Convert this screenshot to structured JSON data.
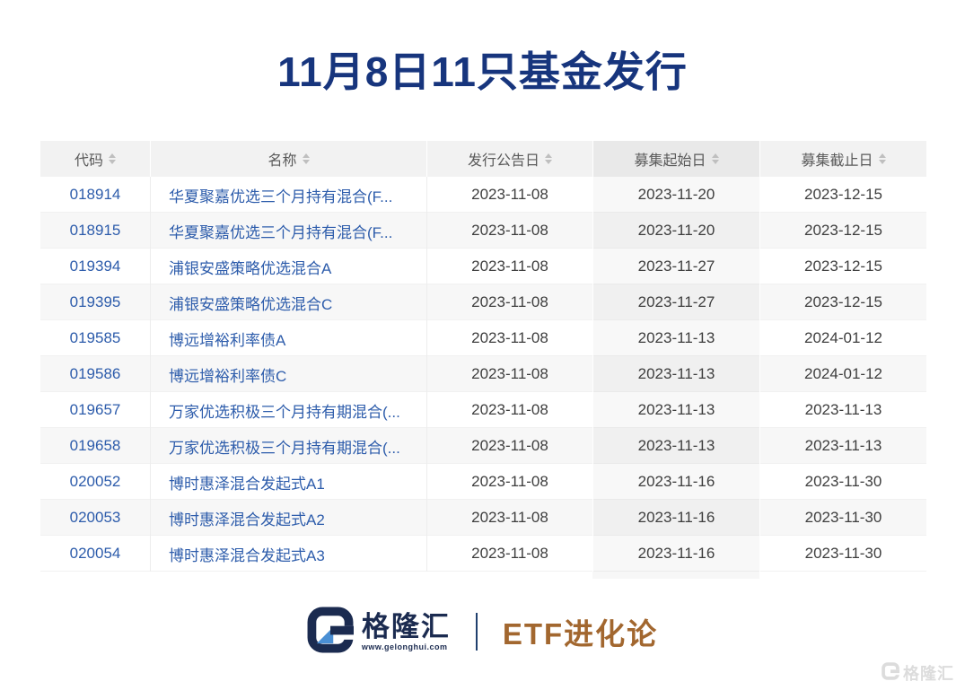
{
  "title": "11月8日11只基金发行",
  "table": {
    "columns": [
      {
        "key": "code",
        "label": "代码",
        "highlight": false
      },
      {
        "key": "name",
        "label": "名称",
        "highlight": false
      },
      {
        "key": "announce-date",
        "label": "发行公告日",
        "highlight": false
      },
      {
        "key": "start-date",
        "label": "募集起始日",
        "highlight": true
      },
      {
        "key": "end-date",
        "label": "募集截止日",
        "highlight": false
      }
    ],
    "rows": [
      {
        "code": "018914",
        "name": "华夏聚嘉优选三个月持有混合(F...",
        "announce_date": "2023-11-08",
        "start_date": "2023-11-20",
        "end_date": "2023-12-15"
      },
      {
        "code": "018915",
        "name": "华夏聚嘉优选三个月持有混合(F...",
        "announce_date": "2023-11-08",
        "start_date": "2023-11-20",
        "end_date": "2023-12-15"
      },
      {
        "code": "019394",
        "name": "浦银安盛策略优选混合A",
        "announce_date": "2023-11-08",
        "start_date": "2023-11-27",
        "end_date": "2023-12-15"
      },
      {
        "code": "019395",
        "name": "浦银安盛策略优选混合C",
        "announce_date": "2023-11-08",
        "start_date": "2023-11-27",
        "end_date": "2023-12-15"
      },
      {
        "code": "019585",
        "name": "博远增裕利率债A",
        "announce_date": "2023-11-08",
        "start_date": "2023-11-13",
        "end_date": "2024-01-12"
      },
      {
        "code": "019586",
        "name": "博远增裕利率债C",
        "announce_date": "2023-11-08",
        "start_date": "2023-11-13",
        "end_date": "2024-01-12"
      },
      {
        "code": "019657",
        "name": "万家优选积极三个月持有期混合(...",
        "announce_date": "2023-11-08",
        "start_date": "2023-11-13",
        "end_date": "2023-11-13"
      },
      {
        "code": "019658",
        "name": "万家优选积极三个月持有期混合(...",
        "announce_date": "2023-11-08",
        "start_date": "2023-11-13",
        "end_date": "2023-11-13"
      },
      {
        "code": "020052",
        "name": "博时惠泽混合发起式A1",
        "announce_date": "2023-11-08",
        "start_date": "2023-11-16",
        "end_date": "2023-11-30"
      },
      {
        "code": "020053",
        "name": "博时惠泽混合发起式A2",
        "announce_date": "2023-11-08",
        "start_date": "2023-11-16",
        "end_date": "2023-11-30"
      },
      {
        "code": "020054",
        "name": "博时惠泽混合发起式A3",
        "announce_date": "2023-11-08",
        "start_date": "2023-11-16",
        "end_date": "2023-11-30"
      }
    ]
  },
  "footer": {
    "brand_name": "格隆汇",
    "brand_url": "www.gelonghui.com",
    "series_title": "ETF进化论"
  },
  "watermark_text": "格隆汇",
  "colors": {
    "title_navy": "#17357d",
    "accent_blue": "#2d5cab",
    "brand_navy": "#1b2b50",
    "brand_lightblue": "#4a8fd4",
    "series_brown": "#a2672f",
    "header_bg": "#f2f2f2",
    "header_highlight_bg": "#e9e9e9",
    "row_alt_bg": "#f7f7f7"
  }
}
